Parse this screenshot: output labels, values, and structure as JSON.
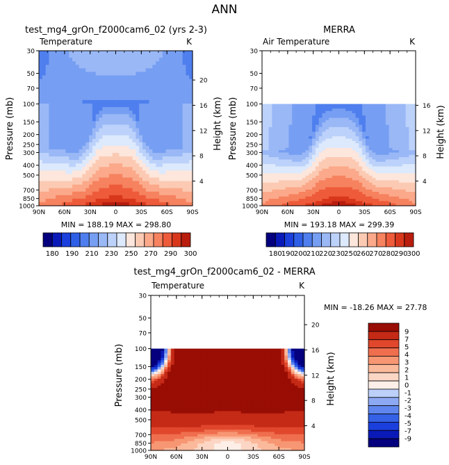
{
  "page_title": "ANN",
  "colors": {
    "plot_bg": "#ffffff",
    "field_levels": [
      "#04007e",
      "#0a1ab8",
      "#1a3fdc",
      "#2e5fe6",
      "#4f7fee",
      "#769ef2",
      "#9ab8f6",
      "#bcd2fa",
      "#dde9fc",
      "#fde6dc",
      "#fccab3",
      "#fba98a",
      "#f6825f",
      "#ee5b3a",
      "#d8371c",
      "#b81d0e",
      "#8a0c06"
    ],
    "diff_levels": [
      "#04007e",
      "#0a1ab8",
      "#1a3fdc",
      "#3461e6",
      "#5f86ee",
      "#8ea9f3",
      "#bcd0fa",
      "#fdefe8",
      "#fcd6c4",
      "#fbb99b",
      "#f79673",
      "#ef6e4e",
      "#e0472c",
      "#c42a16",
      "#980d04"
    ]
  },
  "chart_data": [
    {
      "id": "model",
      "type": "contour",
      "title": "test_mg4_grOn_f2000cam6_02 (yrs 2-3)",
      "variable_label": "Temperature",
      "units_label": "K",
      "xlabel": "",
      "ylabel": "Pressure (mb)",
      "y2label": "Height (km)",
      "x_ticks": [
        "90N",
        "60N",
        "30N",
        "0",
        "30S",
        "60S",
        "90S"
      ],
      "x_values": [
        90,
        60,
        30,
        0,
        -30,
        -60,
        -90
      ],
      "y_ticks": [
        "30",
        "50",
        "70",
        "100",
        "150",
        "200",
        "250",
        "300",
        "400",
        "500",
        "700",
        "850",
        "1000"
      ],
      "y_values": [
        30,
        50,
        70,
        100,
        150,
        200,
        250,
        300,
        400,
        500,
        700,
        850,
        1000
      ],
      "ylim": [
        1000,
        30
      ],
      "height_ticks": [
        "20",
        "16",
        "12",
        "8",
        "4"
      ],
      "height_values": [
        20,
        16,
        12,
        8,
        4
      ],
      "data_top_mb": 30,
      "stats_text": "MIN = 188.19   MAX = 298.80",
      "min": 188.19,
      "max": 298.8,
      "levels": [
        180,
        185,
        190,
        200,
        210,
        220,
        230,
        240,
        250,
        260,
        270,
        280,
        290,
        295,
        300
      ]
    },
    {
      "id": "obs",
      "type": "contour",
      "title": "MERRA",
      "variable_label": "Air Temperature",
      "units_label": "K",
      "xlabel": "",
      "ylabel": "Pressure (mb)",
      "y2label": "Height (km)",
      "x_ticks": [
        "90N",
        "60N",
        "30N",
        "0",
        "30S",
        "60S",
        "90S"
      ],
      "x_values": [
        90,
        60,
        30,
        0,
        -30,
        -60,
        -90
      ],
      "y_ticks": [
        "30",
        "50",
        "70",
        "100",
        "150",
        "200",
        "250",
        "300",
        "400",
        "500",
        "700",
        "850",
        "1000"
      ],
      "y_values": [
        30,
        50,
        70,
        100,
        150,
        200,
        250,
        300,
        400,
        500,
        700,
        850,
        1000
      ],
      "ylim": [
        1000,
        30
      ],
      "height_ticks": [
        "16",
        "12",
        "8",
        "4"
      ],
      "height_values": [
        16,
        12,
        8,
        4
      ],
      "data_top_mb": 100,
      "stats_text": "MIN = 193.18   MAX = 299.39",
      "min": 193.18,
      "max": 299.39,
      "levels": [
        180,
        185,
        190,
        200,
        210,
        220,
        230,
        240,
        250,
        260,
        270,
        280,
        290,
        295,
        300
      ]
    },
    {
      "id": "diff",
      "type": "contour",
      "title": "test_mg4_grOn_f2000cam6_02 - MERRA",
      "variable_label": "Temperature",
      "units_label": "K",
      "xlabel": "",
      "ylabel": "Pressure (mb)",
      "y2label": "Height (km)",
      "x_ticks": [
        "90N",
        "60N",
        "30N",
        "0",
        "30S",
        "60S",
        "90S"
      ],
      "x_values": [
        90,
        60,
        30,
        0,
        -30,
        -60,
        -90
      ],
      "y_ticks": [
        "30",
        "50",
        "70",
        "100",
        "150",
        "200",
        "250",
        "300",
        "400",
        "500",
        "700",
        "850",
        "1000"
      ],
      "y_values": [
        30,
        50,
        70,
        100,
        150,
        200,
        250,
        300,
        400,
        500,
        700,
        850,
        1000
      ],
      "ylim": [
        1000,
        30
      ],
      "height_ticks": [
        "20",
        "16",
        "12",
        "8",
        "4"
      ],
      "height_values": [
        20,
        16,
        12,
        8,
        4
      ],
      "data_top_mb": 100,
      "stats_text": "MIN = -18.26   MAX =  27.78",
      "min": -18.26,
      "max": 27.78,
      "levels": [
        -9,
        -7,
        -5,
        -4,
        -3,
        -2,
        -1,
        0,
        1,
        2,
        3,
        4,
        5,
        7,
        9
      ]
    }
  ],
  "colorbars": {
    "model_labels": [
      "180",
      "190",
      "210",
      "230",
      "250",
      "270",
      "290",
      "300"
    ],
    "obs_labels": [
      "180",
      "190",
      "200",
      "210",
      "220",
      "230",
      "250",
      "260",
      "270",
      "280",
      "290",
      "300"
    ],
    "diff_labels": [
      "9",
      "7",
      "5",
      "4",
      "3",
      "2",
      "1",
      "0",
      "-1",
      "-2",
      "-3",
      "-4",
      "-5",
      "-7",
      "-9"
    ]
  }
}
